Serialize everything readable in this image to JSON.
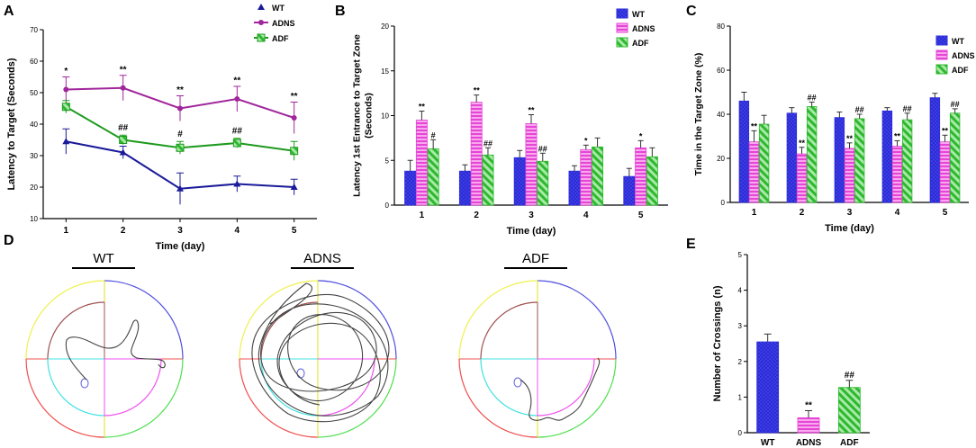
{
  "panels": {
    "A": "A",
    "B": "B",
    "C": "C",
    "D": "D",
    "E": "E"
  },
  "colors": {
    "WT": "#2b2bd9",
    "ADNS": "#f05ce0",
    "ADF": "#38c238",
    "ADNS_line": "#a0269b",
    "WT_line": "#1a1a9a",
    "ADF_line": "#1e9a1e"
  },
  "maze": {
    "labels": [
      "WT",
      "ADNS",
      "ADF"
    ],
    "quadrant_colors": [
      "#f0f050",
      "#5050e0",
      "#f05050",
      "#50e050",
      "#a05050",
      "#f050f0",
      "#40e0e0"
    ]
  },
  "chart_data": [
    {
      "id": "A",
      "type": "line",
      "title": "",
      "xlabel": "Time (day)",
      "ylabel": "Latency to Target (Seconds)",
      "x": [
        1,
        2,
        3,
        4,
        5
      ],
      "xlim": [
        0.6,
        5.4
      ],
      "ylim": [
        10,
        70
      ],
      "yticks": [
        10,
        20,
        30,
        40,
        50,
        60,
        70
      ],
      "legend": [
        "WT",
        "ADNS",
        "ADF"
      ],
      "series": [
        {
          "name": "WT",
          "values": [
            34.5,
            31,
            19.5,
            21,
            20
          ],
          "errors": [
            4,
            2,
            5,
            2.5,
            2.5
          ]
        },
        {
          "name": "ADNS",
          "values": [
            51,
            51.5,
            45,
            48,
            42
          ],
          "errors": [
            4,
            4,
            4,
            4,
            5
          ]
        },
        {
          "name": "ADF",
          "values": [
            45.5,
            35,
            32.5,
            34,
            31.5
          ],
          "errors": [
            2,
            1.5,
            2,
            1.5,
            3
          ]
        }
      ],
      "annotations": [
        {
          "x": 1,
          "y": 56,
          "text": "*"
        },
        {
          "x": 2,
          "y": 56.5,
          "text": "**"
        },
        {
          "x": 3,
          "y": 50,
          "text": "**"
        },
        {
          "x": 4,
          "y": 53,
          "text": "**"
        },
        {
          "x": 5,
          "y": 48,
          "text": "**"
        },
        {
          "x": 2,
          "y": 38,
          "text": "##"
        },
        {
          "x": 3,
          "y": 36,
          "text": "#"
        },
        {
          "x": 4,
          "y": 37,
          "text": "##"
        }
      ]
    },
    {
      "id": "B",
      "type": "bar",
      "xlabel": "Time (day)",
      "ylabel": "Latency 1st Entrance to Target Zone (Seconds)",
      "ylabel_lines": [
        "Latency 1st Entrance to Target Zone",
        "(Seconds)"
      ],
      "categories": [
        "1",
        "2",
        "3",
        "4",
        "5"
      ],
      "ylim": [
        0,
        20
      ],
      "yticks": [
        0,
        5,
        10,
        15,
        20
      ],
      "legend": [
        "WT",
        "ADNS",
        "ADF"
      ],
      "series": [
        {
          "name": "WT",
          "values": [
            3.8,
            3.8,
            5.3,
            3.8,
            3.2
          ],
          "errors": [
            1.2,
            0.7,
            0.8,
            0.6,
            0.9
          ]
        },
        {
          "name": "ADNS",
          "values": [
            9.5,
            11.5,
            9.1,
            6.2,
            6.4
          ],
          "errors": [
            1.0,
            0.8,
            1.0,
            0.5,
            0.8
          ]
        },
        {
          "name": "ADF",
          "values": [
            6.3,
            5.6,
            4.9,
            6.5,
            5.4
          ],
          "errors": [
            1.0,
            0.8,
            0.9,
            1.0,
            1.0
          ]
        }
      ],
      "annotations": [
        {
          "cat": 0,
          "s": 1,
          "text": "**"
        },
        {
          "cat": 0,
          "s": 2,
          "text": "#"
        },
        {
          "cat": 1,
          "s": 1,
          "text": "**"
        },
        {
          "cat": 1,
          "s": 2,
          "text": "##"
        },
        {
          "cat": 2,
          "s": 1,
          "text": "**"
        },
        {
          "cat": 2,
          "s": 2,
          "text": "##"
        },
        {
          "cat": 3,
          "s": 1,
          "text": "*"
        },
        {
          "cat": 4,
          "s": 1,
          "text": "*"
        }
      ]
    },
    {
      "id": "C",
      "type": "bar",
      "xlabel": "Time (day)",
      "ylabel": "Time in the Target Zone (%)",
      "ylabel_lines": [
        "Time in the Target Zone (%)"
      ],
      "categories": [
        "1",
        "2",
        "3",
        "4",
        "5"
      ],
      "ylim": [
        0,
        80
      ],
      "yticks": [
        0,
        20,
        40,
        60,
        80
      ],
      "legend": [
        "WT",
        "ADNS",
        "ADF"
      ],
      "series": [
        {
          "name": "WT",
          "values": [
            46,
            40.5,
            38.5,
            41.5,
            47.5
          ],
          "errors": [
            4,
            2.5,
            2.5,
            1.5,
            2
          ]
        },
        {
          "name": "ADNS",
          "values": [
            27.5,
            22,
            24.5,
            25.5,
            27.5
          ],
          "errors": [
            5,
            3,
            2.5,
            2.5,
            3
          ]
        },
        {
          "name": "ADF",
          "values": [
            35.5,
            43.5,
            38,
            37.5,
            40.5
          ],
          "errors": [
            4,
            2,
            2,
            3,
            2
          ]
        }
      ],
      "annotations": [
        {
          "cat": 0,
          "s": 1,
          "text": "**"
        },
        {
          "cat": 1,
          "s": 1,
          "text": "**"
        },
        {
          "cat": 1,
          "s": 2,
          "text": "##"
        },
        {
          "cat": 2,
          "s": 1,
          "text": "**"
        },
        {
          "cat": 2,
          "s": 2,
          "text": "##"
        },
        {
          "cat": 3,
          "s": 1,
          "text": "**"
        },
        {
          "cat": 3,
          "s": 2,
          "text": "##"
        },
        {
          "cat": 4,
          "s": 1,
          "text": "**"
        },
        {
          "cat": 4,
          "s": 2,
          "text": "##"
        }
      ]
    },
    {
      "id": "E",
      "type": "bar",
      "xlabel": "",
      "ylabel": "Number of Crossings (n)",
      "categories": [
        "WT",
        "ADNS",
        "ADF"
      ],
      "ylim": [
        0,
        5
      ],
      "yticks": [
        0,
        1,
        2,
        3,
        4,
        5
      ],
      "series": [
        {
          "name": "Crossings",
          "values": [
            2.55,
            0.42,
            1.27
          ],
          "errors": [
            0.22,
            0.2,
            0.2
          ]
        }
      ],
      "annotations": [
        {
          "cat": 1,
          "text": "**"
        },
        {
          "cat": 2,
          "text": "##"
        }
      ]
    }
  ]
}
